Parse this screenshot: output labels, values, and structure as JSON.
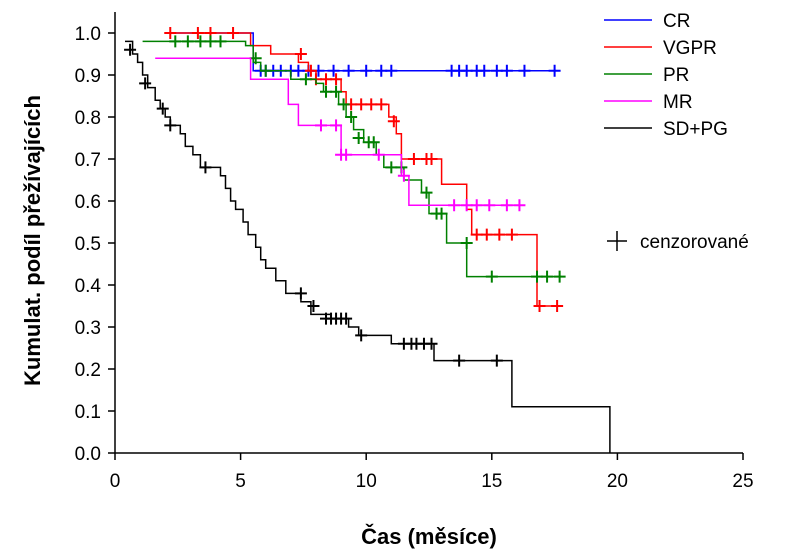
{
  "chart_data": {
    "type": "line",
    "title": "",
    "xlabel": "Čas (měsíce)",
    "ylabel": "Kumulat. podíl přežívajících",
    "xlim": [
      0,
      25
    ],
    "ylim": [
      0,
      1.05
    ],
    "x_ticks": [
      0,
      5,
      10,
      15,
      20,
      25
    ],
    "x_tick_labels": [
      "0",
      "5",
      "10",
      "15",
      "20",
      "25"
    ],
    "y_ticks": [
      0,
      0.1,
      0.2,
      0.3,
      0.4,
      0.5,
      0.6,
      0.7,
      0.8,
      0.9,
      1.0
    ],
    "y_tick_labels": [
      "0.0",
      "0.1",
      "0.2",
      "0.3",
      "0.4",
      "0.5",
      "0.6",
      "0.7",
      "0.8",
      "0.9",
      "1.0"
    ],
    "grid": false,
    "legend_position": "top-right",
    "censor_legend_label": "cenzorované",
    "series": [
      {
        "name": "CR",
        "color": "#0000ff",
        "steps": [
          [
            2.0,
            1.0
          ],
          [
            5.5,
            0.91
          ],
          [
            17.5,
            0.91
          ]
        ],
        "censored": [
          [
            5.8,
            0.91
          ],
          [
            6.0,
            0.91
          ],
          [
            6.3,
            0.91
          ],
          [
            6.6,
            0.91
          ],
          [
            7.0,
            0.91
          ],
          [
            7.3,
            0.91
          ],
          [
            7.7,
            0.91
          ],
          [
            8.1,
            0.91
          ],
          [
            8.7,
            0.91
          ],
          [
            9.3,
            0.91
          ],
          [
            10.0,
            0.91
          ],
          [
            10.6,
            0.91
          ],
          [
            11.0,
            0.91
          ],
          [
            13.4,
            0.91
          ],
          [
            13.7,
            0.91
          ],
          [
            14.0,
            0.91
          ],
          [
            14.4,
            0.91
          ],
          [
            14.7,
            0.91
          ],
          [
            15.2,
            0.91
          ],
          [
            15.6,
            0.91
          ],
          [
            16.3,
            0.91
          ],
          [
            17.5,
            0.91
          ]
        ]
      },
      {
        "name": "VGPR",
        "color": "#ff0000",
        "steps": [
          [
            2.0,
            1.0
          ],
          [
            5.4,
            0.97
          ],
          [
            6.2,
            0.95
          ],
          [
            7.3,
            0.93
          ],
          [
            7.7,
            0.91
          ],
          [
            8.0,
            0.89
          ],
          [
            9.0,
            0.86
          ],
          [
            9.2,
            0.83
          ],
          [
            10.9,
            0.8
          ],
          [
            11.2,
            0.76
          ],
          [
            11.4,
            0.7
          ],
          [
            13.0,
            0.64
          ],
          [
            14.0,
            0.58
          ],
          [
            14.2,
            0.52
          ],
          [
            16.8,
            0.35
          ],
          [
            17.8,
            0.35
          ]
        ],
        "censored": [
          [
            2.2,
            1.0
          ],
          [
            3.3,
            1.0
          ],
          [
            3.8,
            1.0
          ],
          [
            4.7,
            1.0
          ],
          [
            7.4,
            0.95
          ],
          [
            7.8,
            0.91
          ],
          [
            8.0,
            0.89
          ],
          [
            8.4,
            0.89
          ],
          [
            8.8,
            0.89
          ],
          [
            9.4,
            0.83
          ],
          [
            9.8,
            0.83
          ],
          [
            10.2,
            0.83
          ],
          [
            10.6,
            0.83
          ],
          [
            11.1,
            0.79
          ],
          [
            11.9,
            0.7
          ],
          [
            12.4,
            0.7
          ],
          [
            12.6,
            0.7
          ],
          [
            14.4,
            0.52
          ],
          [
            14.8,
            0.52
          ],
          [
            15.3,
            0.52
          ],
          [
            15.8,
            0.52
          ],
          [
            16.9,
            0.35
          ],
          [
            17.6,
            0.35
          ]
        ]
      },
      {
        "name": "PR",
        "color": "#008000",
        "steps": [
          [
            1.1,
            0.98
          ],
          [
            5.2,
            0.97
          ],
          [
            5.5,
            0.93
          ],
          [
            5.8,
            0.91
          ],
          [
            7.0,
            0.89
          ],
          [
            8.0,
            0.88
          ],
          [
            8.3,
            0.86
          ],
          [
            8.9,
            0.83
          ],
          [
            9.2,
            0.8
          ],
          [
            9.5,
            0.77
          ],
          [
            9.9,
            0.74
          ],
          [
            10.4,
            0.71
          ],
          [
            10.7,
            0.68
          ],
          [
            11.5,
            0.65
          ],
          [
            12.2,
            0.62
          ],
          [
            12.5,
            0.57
          ],
          [
            13.2,
            0.5
          ],
          [
            14.0,
            0.42
          ],
          [
            17.8,
            0.42
          ]
        ],
        "censored": [
          [
            2.4,
            0.98
          ],
          [
            2.9,
            0.98
          ],
          [
            3.4,
            0.98
          ],
          [
            3.8,
            0.98
          ],
          [
            4.2,
            0.98
          ],
          [
            5.6,
            0.94
          ],
          [
            6.0,
            0.91
          ],
          [
            7.6,
            0.89
          ],
          [
            8.4,
            0.86
          ],
          [
            8.8,
            0.86
          ],
          [
            9.1,
            0.83
          ],
          [
            9.4,
            0.8
          ],
          [
            9.7,
            0.75
          ],
          [
            10.1,
            0.74
          ],
          [
            10.3,
            0.74
          ],
          [
            11.0,
            0.68
          ],
          [
            11.4,
            0.68
          ],
          [
            12.4,
            0.62
          ],
          [
            12.8,
            0.57
          ],
          [
            13.0,
            0.57
          ],
          [
            14.0,
            0.5
          ],
          [
            15.0,
            0.42
          ],
          [
            16.8,
            0.42
          ],
          [
            17.2,
            0.42
          ],
          [
            17.7,
            0.42
          ]
        ]
      },
      {
        "name": "MR",
        "color": "#ff00ff",
        "steps": [
          [
            1.6,
            0.94
          ],
          [
            5.4,
            0.89
          ],
          [
            6.9,
            0.83
          ],
          [
            7.3,
            0.78
          ],
          [
            9.0,
            0.71
          ],
          [
            11.4,
            0.66
          ],
          [
            11.7,
            0.59
          ],
          [
            16.3,
            0.59
          ]
        ],
        "censored": [
          [
            8.2,
            0.78
          ],
          [
            8.8,
            0.78
          ],
          [
            9.0,
            0.71
          ],
          [
            9.2,
            0.71
          ],
          [
            10.5,
            0.71
          ],
          [
            11.5,
            0.66
          ],
          [
            13.5,
            0.59
          ],
          [
            14.0,
            0.59
          ],
          [
            14.4,
            0.59
          ],
          [
            14.9,
            0.59
          ],
          [
            15.6,
            0.59
          ],
          [
            16.1,
            0.59
          ]
        ]
      },
      {
        "name": "SD+PG",
        "color": "#000000",
        "steps": [
          [
            0.4,
            0.98
          ],
          [
            0.7,
            0.95
          ],
          [
            0.9,
            0.93
          ],
          [
            1.1,
            0.9
          ],
          [
            1.3,
            0.87
          ],
          [
            1.6,
            0.84
          ],
          [
            1.8,
            0.82
          ],
          [
            2.0,
            0.8
          ],
          [
            2.2,
            0.78
          ],
          [
            2.6,
            0.76
          ],
          [
            2.8,
            0.73
          ],
          [
            3.1,
            0.71
          ],
          [
            3.4,
            0.68
          ],
          [
            4.2,
            0.66
          ],
          [
            4.4,
            0.63
          ],
          [
            4.6,
            0.6
          ],
          [
            4.8,
            0.58
          ],
          [
            5.1,
            0.55
          ],
          [
            5.3,
            0.52
          ],
          [
            5.6,
            0.49
          ],
          [
            5.8,
            0.46
          ],
          [
            6.0,
            0.44
          ],
          [
            6.4,
            0.41
          ],
          [
            6.8,
            0.38
          ],
          [
            7.4,
            0.36
          ],
          [
            7.8,
            0.33
          ],
          [
            8.6,
            0.32
          ],
          [
            9.3,
            0.3
          ],
          [
            9.7,
            0.28
          ],
          [
            11.0,
            0.26
          ],
          [
            12.7,
            0.22
          ],
          [
            15.8,
            0.11
          ],
          [
            19.7,
            0.0
          ]
        ],
        "censored": [
          [
            0.6,
            0.96
          ],
          [
            1.2,
            0.88
          ],
          [
            1.9,
            0.82
          ],
          [
            2.2,
            0.78
          ],
          [
            3.6,
            0.68
          ],
          [
            7.4,
            0.38
          ],
          [
            7.9,
            0.35
          ],
          [
            8.4,
            0.32
          ],
          [
            8.6,
            0.32
          ],
          [
            8.8,
            0.32
          ],
          [
            9.0,
            0.32
          ],
          [
            9.2,
            0.32
          ],
          [
            9.8,
            0.28
          ],
          [
            11.5,
            0.26
          ],
          [
            11.8,
            0.26
          ],
          [
            12.0,
            0.26
          ],
          [
            12.3,
            0.26
          ],
          [
            12.6,
            0.26
          ],
          [
            13.7,
            0.22
          ],
          [
            15.2,
            0.22
          ]
        ]
      }
    ]
  }
}
